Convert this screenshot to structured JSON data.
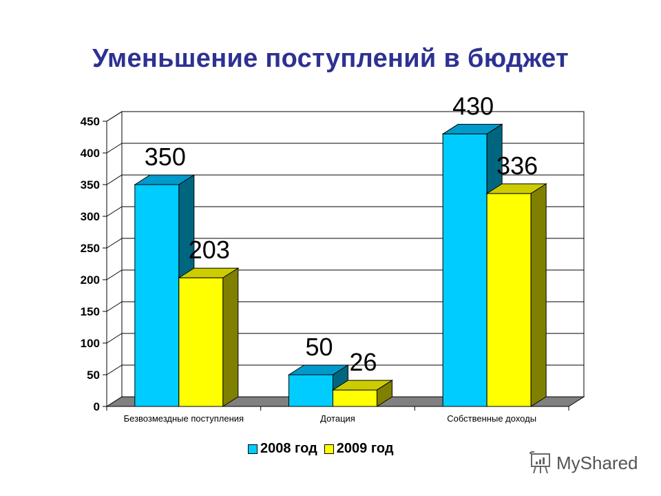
{
  "title": "Уменьшение поступлений в бюджет",
  "chart_data": {
    "type": "bar",
    "title": "Уменьшение поступлений в бюджет",
    "categories": [
      "Безвозмездные поступления",
      "Дотация",
      "Собственные доходы"
    ],
    "series": [
      {
        "name": "2008 год",
        "values": [
          350,
          50,
          430
        ],
        "color": "#00ccff",
        "top_color": "#0099cc",
        "side_color": "#006680"
      },
      {
        "name": "2009 год",
        "values": [
          203,
          26,
          336
        ],
        "color": "#ffff00",
        "top_color": "#cccc00",
        "side_color": "#808000"
      }
    ],
    "data_labels": [
      [
        "350",
        "50",
        "430"
      ],
      [
        "203",
        "26",
        "336"
      ]
    ],
    "yticks": [
      0,
      50,
      100,
      150,
      200,
      250,
      300,
      350,
      400,
      450
    ],
    "ylim": [
      0,
      450
    ],
    "xlabel": "",
    "ylabel": "",
    "grid": true,
    "legend_position": "bottom",
    "style": "3d-column"
  },
  "legend": {
    "items": [
      {
        "label": "2008 год",
        "color": "#00ccff"
      },
      {
        "label": "2009 год",
        "color": "#ffff00"
      }
    ]
  },
  "watermark": {
    "text": "MyShared"
  }
}
